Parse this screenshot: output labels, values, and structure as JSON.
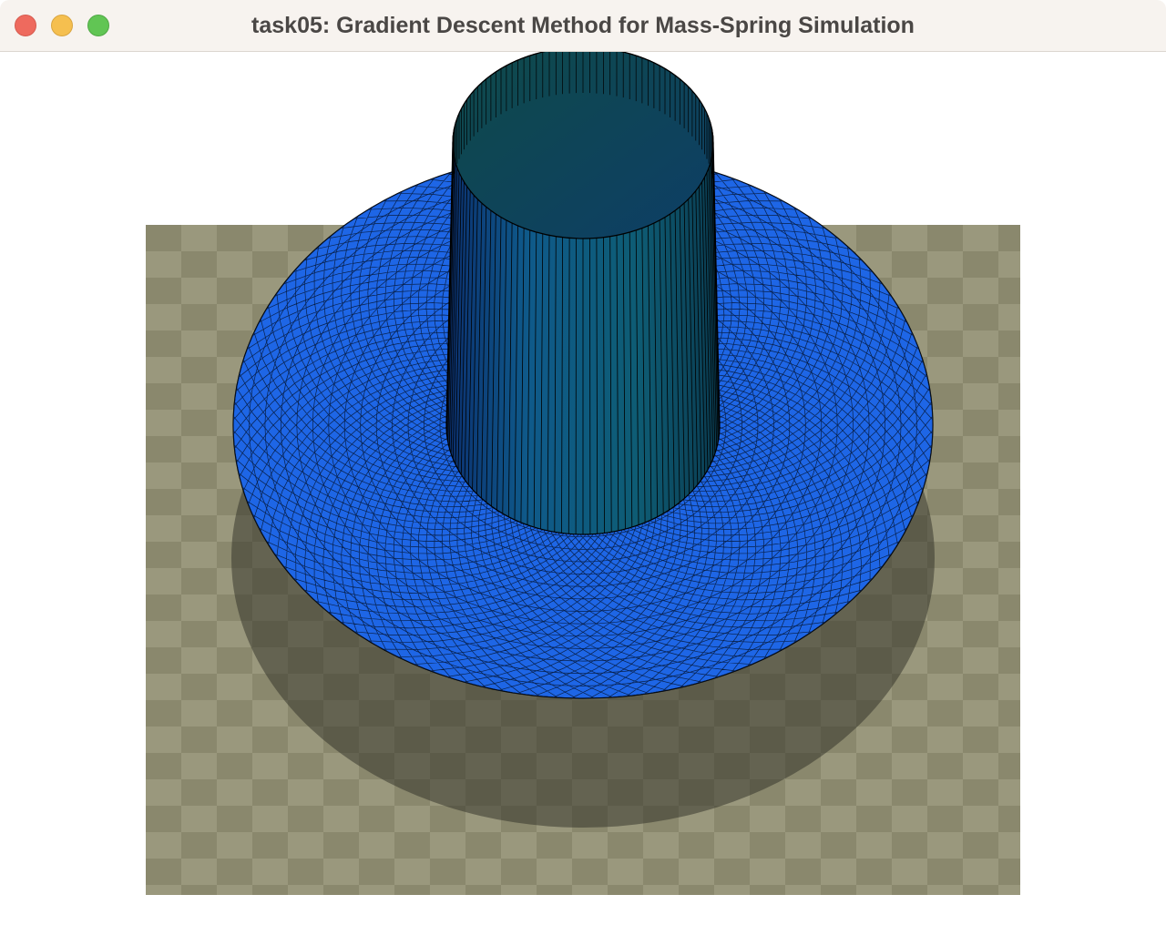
{
  "window": {
    "title": "task05: Gradient Descent Method for Mass-Spring Simulation"
  },
  "scene": {
    "colors": {
      "floor_light": "#9a987d",
      "floor_dark": "#8a886d",
      "shadow": "#3e3e34",
      "cloth": "#1e66e6",
      "cylinder_side": "#0d4f7a",
      "cylinder_top": "#0e4a55",
      "wire": "#000000"
    }
  }
}
